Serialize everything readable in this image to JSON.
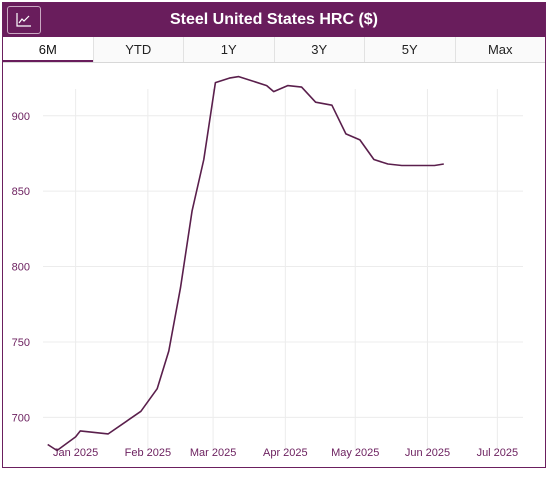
{
  "header": {
    "title": "Steel United States HRC ($)",
    "chart_icon": "line-chart-icon"
  },
  "tabs": [
    {
      "label": "6M",
      "active": true
    },
    {
      "label": "YTD",
      "active": false
    },
    {
      "label": "1Y",
      "active": false
    },
    {
      "label": "3Y",
      "active": false
    },
    {
      "label": "5Y",
      "active": false
    },
    {
      "label": "Max",
      "active": false
    }
  ],
  "colors": {
    "accent": "#691d5c",
    "line": "#5a1f4c",
    "tick_text": "#6b1f5e",
    "grid": "#ececec"
  },
  "chart_data": {
    "type": "line",
    "title": "Steel United States HRC ($)",
    "xlabel": "",
    "ylabel": "",
    "xlim": [
      "2024-12-18",
      "2025-07-12"
    ],
    "ylim": [
      679,
      935
    ],
    "grid": true,
    "xticks": [
      "2025-01-01",
      "2025-02-01",
      "2025-03-01",
      "2025-04-01",
      "2025-05-01",
      "2025-06-01",
      "2025-07-01"
    ],
    "xtick_labels": [
      "Jan 2025",
      "Feb 2025",
      "Mar 2025",
      "Apr 2025",
      "May 2025",
      "Jun 2025",
      "Jul 2025"
    ],
    "yticks": [
      700,
      750,
      800,
      850,
      900
    ],
    "series": [
      {
        "x": [
          "2024-12-20",
          "2024-12-24",
          "2025-01-01",
          "2025-01-03",
          "2025-01-15",
          "2025-01-29",
          "2025-02-05",
          "2025-02-10",
          "2025-02-15",
          "2025-02-20",
          "2025-02-25",
          "2025-03-02",
          "2025-03-08",
          "2025-03-12",
          "2025-03-24",
          "2025-03-27",
          "2025-04-02",
          "2025-04-08",
          "2025-04-14",
          "2025-04-21",
          "2025-04-27",
          "2025-05-03",
          "2025-05-09",
          "2025-05-15",
          "2025-05-21",
          "2025-05-27",
          "2025-06-04",
          "2025-06-08"
        ],
        "y": [
          682,
          678,
          687,
          691,
          689,
          704,
          719,
          744,
          786,
          837,
          871,
          922,
          925,
          926,
          920,
          916,
          920,
          919,
          909,
          907,
          888,
          884,
          871,
          868,
          867,
          867,
          867,
          868
        ]
      }
    ]
  }
}
